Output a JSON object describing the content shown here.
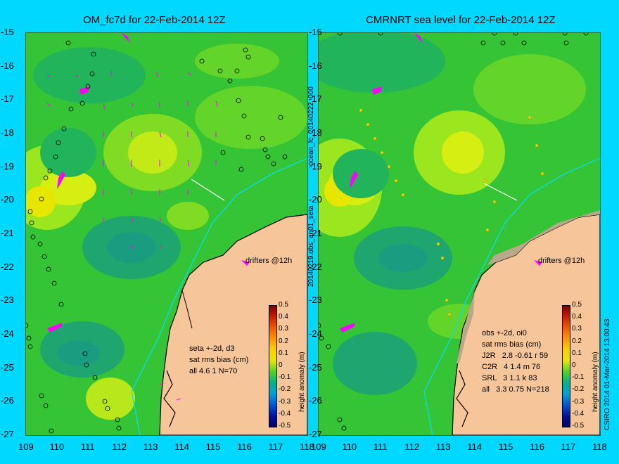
{
  "left_title": "OM_fc7d for 22-Feb-2014 12Z",
  "right_title": "CMRNRT sea level  for 22-Feb-2014 12Z",
  "side_label_mid": "20140219.obs_an01_seta",
  "side_label_top": "ocean_fc_20140222_000",
  "side_label_right": "CSIRO 2014   01-Mar-2014 13:00:43",
  "drifters_label": "drifters @12h",
  "left_stats": [
    "seta +-2d, d3",
    "sat rms bias (cm)",
    "all 4.6 1 N=70"
  ],
  "right_stats": [
    "obs +-2d, oi0",
    "sat rms bias (cm)",
    "J2R   2.8 -0.61 r 59",
    "C2R   4 1.4 m 76",
    "SRL   3 1.1 k 83",
    "all   3.3 0.75 N=218"
  ],
  "colorbar": {
    "label": "height anomaly (m)",
    "ticks": [
      "0.5",
      "0.4",
      "0.3",
      "0.2",
      "0.1",
      "0",
      "-0.1",
      "-0.2",
      "-0.3",
      "-0.4",
      "-0.5"
    ]
  },
  "colors": {
    "land": "#f7c59a",
    "water_base": "#35c435",
    "background": "#00d8ff",
    "drifter": "#ff00ff"
  },
  "chart_data": [
    {
      "type": "heatmap",
      "title": "OM_fc7d for 22-Feb-2014 12Z",
      "xlim": [
        109,
        118
      ],
      "ylim": [
        -27,
        -15
      ],
      "xticks": [
        "109",
        "110",
        "111",
        "112",
        "113",
        "114",
        "115",
        "116",
        "117",
        "118"
      ],
      "yticks": [
        "-15",
        "-16",
        "-17",
        "-18",
        "-19",
        "-20",
        "-21",
        "-22",
        "-23",
        "-24",
        "-25",
        "-26",
        "-27"
      ],
      "colorbar_label": "height anomaly (m)",
      "clim": [
        -0.5,
        0.5
      ]
    },
    {
      "type": "heatmap",
      "title": "CMRNRT sea level  for 22-Feb-2014 12Z",
      "xlim": [
        109,
        118
      ],
      "ylim": [
        -27,
        -15
      ],
      "xticks": [
        "109",
        "110",
        "111",
        "112",
        "113",
        "114",
        "115",
        "116",
        "117",
        "118"
      ],
      "yticks": [
        "-15",
        "-16",
        "-17",
        "-18",
        "-19",
        "-20",
        "-21",
        "-22",
        "-23",
        "-24",
        "-25",
        "-26",
        "-27"
      ],
      "colorbar_label": "height anomaly (m)",
      "clim": [
        -0.5,
        0.5
      ]
    }
  ]
}
